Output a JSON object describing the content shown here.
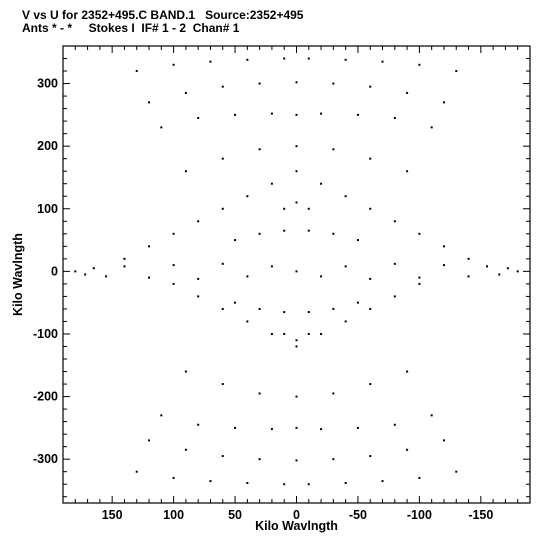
{
  "header": {
    "line1": "V vs U for 2352+495.C BAND.1   Source:2352+495",
    "line2": "Ants * - *     Stokes I  IF# 1 - 2  Chan# 1"
  },
  "chart_data": {
    "type": "scatter",
    "title": "V vs U for 2352+495.C BAND.1   Source:2352+495",
    "subtitle": "Ants * - *     Stokes I  IF# 1 - 2  Chan# 1",
    "xlabel": "Kilo Wavlngth",
    "ylabel": "Kilo Wavlngth",
    "xlim": [
      190,
      -190
    ],
    "ylim": [
      -370,
      360
    ],
    "x_reversed": true,
    "xticks": [
      150,
      100,
      50,
      0,
      -50,
      -100,
      -150
    ],
    "yticks": [
      300,
      200,
      100,
      0,
      -100,
      -200,
      -300
    ],
    "grid": false,
    "legend": "none",
    "colors": {
      "points": "#000000",
      "axes": "#000000",
      "background": "#ffffff"
    },
    "x": [
      -180,
      -172,
      -165,
      -155,
      -140,
      -120,
      -100,
      -80,
      -60,
      -40,
      -20,
      0,
      20,
      40,
      60,
      80,
      100,
      120,
      140,
      155,
      165,
      172,
      180,
      -140,
      -120,
      -100,
      -80,
      -60,
      -40,
      -20,
      0,
      20,
      40,
      60,
      80,
      100,
      120,
      140,
      -100,
      -80,
      -60,
      -40,
      -20,
      0,
      20,
      40,
      60,
      80,
      100,
      -90,
      -60,
      -30,
      0,
      30,
      60,
      90,
      -90,
      -60,
      -30,
      0,
      30,
      60,
      90,
      -110,
      -80,
      -50,
      -20,
      0,
      20,
      50,
      80,
      110,
      -110,
      -80,
      -50,
      -20,
      0,
      20,
      50,
      80,
      110,
      -120,
      -90,
      -60,
      -30,
      0,
      30,
      60,
      90,
      120,
      -120,
      -90,
      -60,
      -30,
      0,
      30,
      60,
      90,
      120,
      -130,
      -100,
      -70,
      -40,
      -10,
      10,
      40,
      70,
      100,
      130,
      -130,
      -100,
      -70,
      -40,
      -10,
      10,
      40,
      70,
      100,
      130,
      -50,
      -30,
      -10,
      10,
      30,
      50,
      -50,
      -30,
      -10,
      10,
      30,
      50,
      -10,
      0,
      10,
      -10,
      0,
      10
    ],
    "y": [
      0,
      5,
      -5,
      8,
      -8,
      10,
      -10,
      12,
      -12,
      8,
      -8,
      0,
      8,
      -8,
      12,
      -12,
      10,
      -10,
      8,
      -8,
      5,
      -5,
      0,
      20,
      40,
      60,
      80,
      100,
      120,
      140,
      160,
      140,
      120,
      100,
      80,
      60,
      40,
      20,
      -20,
      -40,
      -60,
      -80,
      -100,
      -120,
      -100,
      -80,
      -60,
      -40,
      -20,
      160,
      180,
      195,
      200,
      195,
      180,
      160,
      -160,
      -180,
      -195,
      -200,
      -195,
      -180,
      -160,
      230,
      245,
      250,
      252,
      250,
      252,
      250,
      245,
      230,
      -230,
      -245,
      -250,
      -252,
      -250,
      -252,
      -250,
      -245,
      -230,
      270,
      285,
      295,
      300,
      302,
      300,
      295,
      285,
      270,
      -270,
      -285,
      -295,
      -300,
      -302,
      -300,
      -295,
      -285,
      -270,
      320,
      330,
      335,
      338,
      340,
      340,
      338,
      335,
      330,
      320,
      -320,
      -330,
      -335,
      -338,
      -340,
      -340,
      -338,
      -335,
      -330,
      -320,
      50,
      60,
      65,
      65,
      60,
      50,
      -50,
      -60,
      -65,
      -65,
      -60,
      -50,
      100,
      110,
      100,
      -100,
      -110,
      -100
    ]
  }
}
